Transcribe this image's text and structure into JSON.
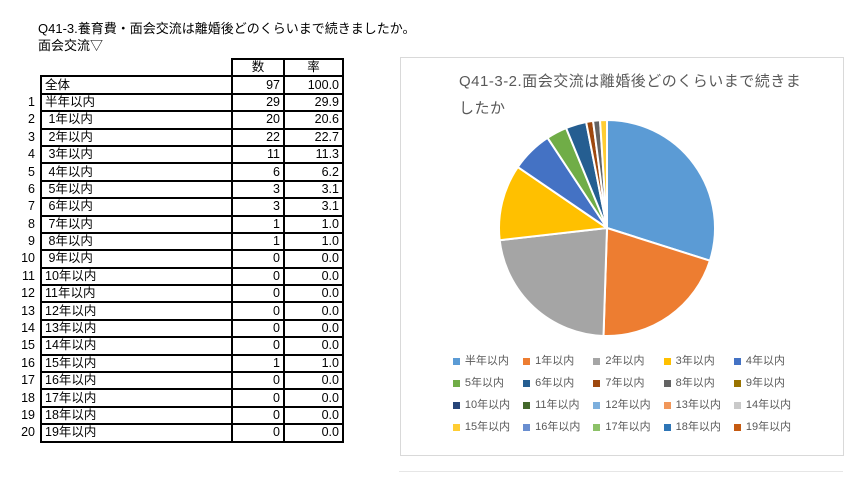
{
  "page": {
    "title_line1": "Q41-3.養育費・面会交流は離婚後どのくらいまで続きましたか。",
    "title_line2": "面会交流▽"
  },
  "table": {
    "col_headers": [
      "数",
      "率"
    ],
    "rows": [
      {
        "index": "",
        "label": "全体",
        "count": "97",
        "rate": "100.0"
      },
      {
        "index": "1",
        "label": "半年以内",
        "count": "29",
        "rate": "29.9"
      },
      {
        "index": "2",
        "label": " 1年以内",
        "count": "20",
        "rate": "20.6"
      },
      {
        "index": "3",
        "label": " 2年以内",
        "count": "22",
        "rate": "22.7"
      },
      {
        "index": "4",
        "label": " 3年以内",
        "count": "11",
        "rate": "11.3"
      },
      {
        "index": "5",
        "label": " 4年以内",
        "count": "6",
        "rate": "6.2"
      },
      {
        "index": "6",
        "label": " 5年以内",
        "count": "3",
        "rate": "3.1"
      },
      {
        "index": "7",
        "label": " 6年以内",
        "count": "3",
        "rate": "3.1"
      },
      {
        "index": "8",
        "label": " 7年以内",
        "count": "1",
        "rate": "1.0"
      },
      {
        "index": "9",
        "label": " 8年以内",
        "count": "1",
        "rate": "1.0"
      },
      {
        "index": "10",
        "label": " 9年以内",
        "count": "0",
        "rate": "0.0"
      },
      {
        "index": "11",
        "label": "10年以内",
        "count": "0",
        "rate": "0.0"
      },
      {
        "index": "12",
        "label": "11年以内",
        "count": "0",
        "rate": "0.0"
      },
      {
        "index": "13",
        "label": "12年以内",
        "count": "0",
        "rate": "0.0"
      },
      {
        "index": "14",
        "label": "13年以内",
        "count": "0",
        "rate": "0.0"
      },
      {
        "index": "15",
        "label": "14年以内",
        "count": "0",
        "rate": "0.0"
      },
      {
        "index": "16",
        "label": "15年以内",
        "count": "1",
        "rate": "1.0"
      },
      {
        "index": "17",
        "label": "16年以内",
        "count": "0",
        "rate": "0.0"
      },
      {
        "index": "18",
        "label": "17年以内",
        "count": "0",
        "rate": "0.0"
      },
      {
        "index": "19",
        "label": "18年以内",
        "count": "0",
        "rate": "0.0"
      },
      {
        "index": "20",
        "label": "19年以内",
        "count": "0",
        "rate": "0.0"
      }
    ]
  },
  "chart_data": {
    "type": "pie",
    "title": "Q41-3-2.面会交流は離婚後どのくらいまで続きましたか",
    "categories": [
      "半年以内",
      "1年以内",
      "2年以内",
      "3年以内",
      "4年以内",
      "5年以内",
      "6年以内",
      "7年以内",
      "8年以内",
      "9年以内",
      "10年以内",
      "11年以内",
      "12年以内",
      "13年以内",
      "14年以内",
      "15年以内",
      "16年以内",
      "17年以内",
      "18年以内",
      "19年以内"
    ],
    "values": [
      29,
      20,
      22,
      11,
      6,
      3,
      3,
      1,
      1,
      0,
      0,
      0,
      0,
      0,
      0,
      1,
      0,
      0,
      0,
      0
    ],
    "percentages": [
      29.9,
      20.6,
      22.7,
      11.3,
      6.2,
      3.1,
      3.1,
      1.0,
      1.0,
      0.0,
      0.0,
      0.0,
      0.0,
      0.0,
      0.0,
      1.0,
      0.0,
      0.0,
      0.0,
      0.0
    ],
    "total": 97,
    "colors": [
      "#5B9BD5",
      "#ED7D31",
      "#A5A5A5",
      "#FFC000",
      "#4472C4",
      "#70AD47",
      "#255E91",
      "#9E480E",
      "#636363",
      "#997300",
      "#264478",
      "#43682B",
      "#7CAFDD",
      "#F1975A",
      "#C9C9C9",
      "#FFCD33",
      "#698ED0",
      "#8CC168",
      "#2E75B6",
      "#C55A11"
    ],
    "start_angle_deg": 0,
    "direction": "clockwise",
    "legend_position": "bottom",
    "slice_border_color": "#FFFFFF"
  }
}
